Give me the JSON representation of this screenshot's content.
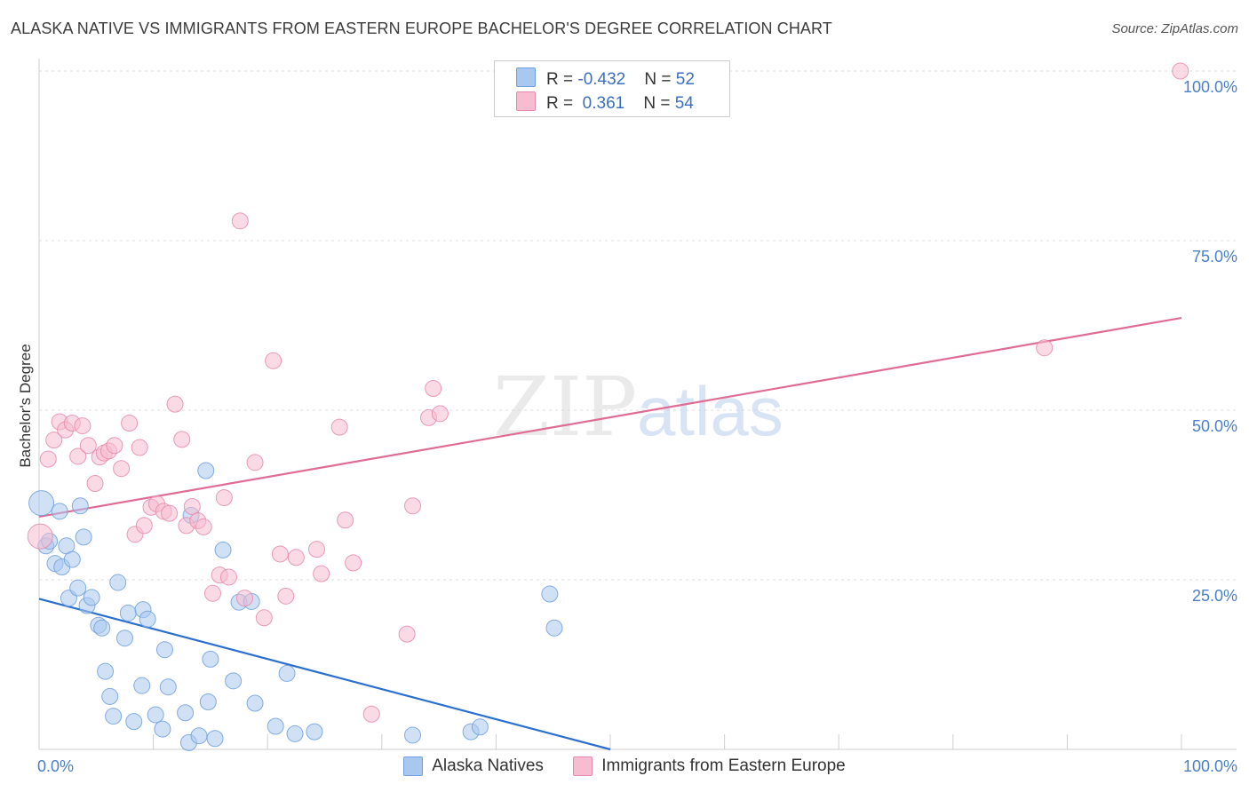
{
  "header": {
    "title": "ALASKA NATIVE VS IMMIGRANTS FROM EASTERN EUROPE BACHELOR'S DEGREE CORRELATION CHART",
    "source": "Source: ZipAtlas.com"
  },
  "watermark": {
    "zip": "ZIP",
    "atlas": "atlas"
  },
  "legend": {
    "series": [
      {
        "r_label": "R = ",
        "r_value": "-0.432",
        "n_label": "N = ",
        "n_value": "52"
      },
      {
        "r_label": "R = ",
        "r_value": " 0.361",
        "n_label": "N = ",
        "n_value": "54"
      }
    ]
  },
  "chart_data": {
    "type": "scatter",
    "title": "ALASKA NATIVE VS IMMIGRANTS FROM EASTERN EUROPE BACHELOR'S DEGREE CORRELATION CHART",
    "xlabel": "",
    "ylabel": "Bachelor's Degree",
    "xlim": [
      0,
      100
    ],
    "ylim": [
      0,
      100
    ],
    "x_tick_labels": {
      "left": "0.0%",
      "right": "100.0%"
    },
    "y_ticks": [
      25,
      50,
      75,
      100
    ],
    "y_tick_labels": [
      "25.0%",
      "50.0%",
      "75.0%",
      "100.0%"
    ],
    "grid": true,
    "legend_position": "top-center",
    "colors": {
      "series1_fill": "#a9c8ef",
      "series1_stroke": "#6f9fdc",
      "series1_line": "#2a6fd0",
      "series2_fill": "#f6bccf",
      "series2_stroke": "#e68aab",
      "series2_line": "#e06c95"
    },
    "series": [
      {
        "name": "Alaska Natives",
        "r": -0.432,
        "n": 52,
        "trend": {
          "x": [
            0,
            50
          ],
          "y": [
            22.2,
            0
          ]
        },
        "points": [
          [
            0.2,
            36.3
          ],
          [
            0.6,
            30
          ],
          [
            0.9,
            30.7
          ],
          [
            1.4,
            27.4
          ],
          [
            1.8,
            35.1
          ],
          [
            2,
            26.9
          ],
          [
            2.4,
            30
          ],
          [
            2.6,
            22.3
          ],
          [
            2.9,
            28
          ],
          [
            3.4,
            23.8
          ],
          [
            3.6,
            35.9
          ],
          [
            3.9,
            31.3
          ],
          [
            4.2,
            21.2
          ],
          [
            4.6,
            22.4
          ],
          [
            5.2,
            18.3
          ],
          [
            5.5,
            17.9
          ],
          [
            5.8,
            11.5
          ],
          [
            6.2,
            7.8
          ],
          [
            6.5,
            4.9
          ],
          [
            6.9,
            24.6
          ],
          [
            7.5,
            16.4
          ],
          [
            7.8,
            20.1
          ],
          [
            8.3,
            4.1
          ],
          [
            9.1,
            20.6
          ],
          [
            9,
            9.4
          ],
          [
            9.5,
            19.2
          ],
          [
            10.2,
            5.1
          ],
          [
            10.8,
            3
          ],
          [
            11,
            14.7
          ],
          [
            11.3,
            9.2
          ],
          [
            12.8,
            5.4
          ],
          [
            13.1,
            1
          ],
          [
            13.3,
            34.5
          ],
          [
            14,
            2
          ],
          [
            14.6,
            41.1
          ],
          [
            14.8,
            7
          ],
          [
            15,
            13.3
          ],
          [
            15.4,
            1.6
          ],
          [
            17,
            10.1
          ],
          [
            17.5,
            21.7
          ],
          [
            16.1,
            29.4
          ],
          [
            18.6,
            21.8
          ],
          [
            18.9,
            6.8
          ],
          [
            20.7,
            3.4
          ],
          [
            21.7,
            11.2
          ],
          [
            22.4,
            2.3
          ],
          [
            24.1,
            2.6
          ],
          [
            32.7,
            2.1
          ],
          [
            37.8,
            2.6
          ],
          [
            38.6,
            3.3
          ],
          [
            44.7,
            22.9
          ],
          [
            45.1,
            17.9
          ]
        ]
      },
      {
        "name": "Immigrants from Eastern Europe",
        "r": 0.361,
        "n": 54,
        "trend": {
          "x": [
            0,
            100
          ],
          "y": [
            34.3,
            63.6
          ]
        },
        "points": [
          [
            0.1,
            31.4
          ],
          [
            0.8,
            42.8
          ],
          [
            1.3,
            45.6
          ],
          [
            1.8,
            48.3
          ],
          [
            2.3,
            47.1
          ],
          [
            2.9,
            48.1
          ],
          [
            3.4,
            43.2
          ],
          [
            3.8,
            47.7
          ],
          [
            4.3,
            44.8
          ],
          [
            4.9,
            39.2
          ],
          [
            5.3,
            43.1
          ],
          [
            5.7,
            43.7
          ],
          [
            6.1,
            44
          ],
          [
            6.6,
            44.8
          ],
          [
            7.2,
            41.4
          ],
          [
            7.9,
            48.1
          ],
          [
            8.4,
            31.7
          ],
          [
            8.8,
            44.5
          ],
          [
            9.2,
            33
          ],
          [
            9.8,
            35.7
          ],
          [
            10.3,
            36.2
          ],
          [
            10.9,
            35.1
          ],
          [
            11.4,
            34.8
          ],
          [
            11.9,
            50.9
          ],
          [
            12.5,
            45.7
          ],
          [
            12.9,
            33
          ],
          [
            13.4,
            35.8
          ],
          [
            13.9,
            33.7
          ],
          [
            14.4,
            32.8
          ],
          [
            15.2,
            23
          ],
          [
            15.8,
            25.7
          ],
          [
            16.2,
            37.1
          ],
          [
            16.6,
            25.4
          ],
          [
            17.6,
            77.9
          ],
          [
            18,
            22.3
          ],
          [
            18.9,
            42.3
          ],
          [
            19.7,
            19.4
          ],
          [
            20.5,
            57.3
          ],
          [
            21.1,
            28.8
          ],
          [
            21.6,
            22.6
          ],
          [
            22.5,
            28.3
          ],
          [
            24.3,
            29.5
          ],
          [
            24.7,
            25.9
          ],
          [
            26.3,
            47.5
          ],
          [
            26.8,
            33.8
          ],
          [
            27.5,
            27.5
          ],
          [
            29.1,
            5.2
          ],
          [
            32.2,
            17
          ],
          [
            32.7,
            35.9
          ],
          [
            34.1,
            48.9
          ],
          [
            34.5,
            53.2
          ],
          [
            35.1,
            49.5
          ],
          [
            88,
            59.2
          ],
          [
            99.9,
            100
          ]
        ]
      }
    ]
  }
}
